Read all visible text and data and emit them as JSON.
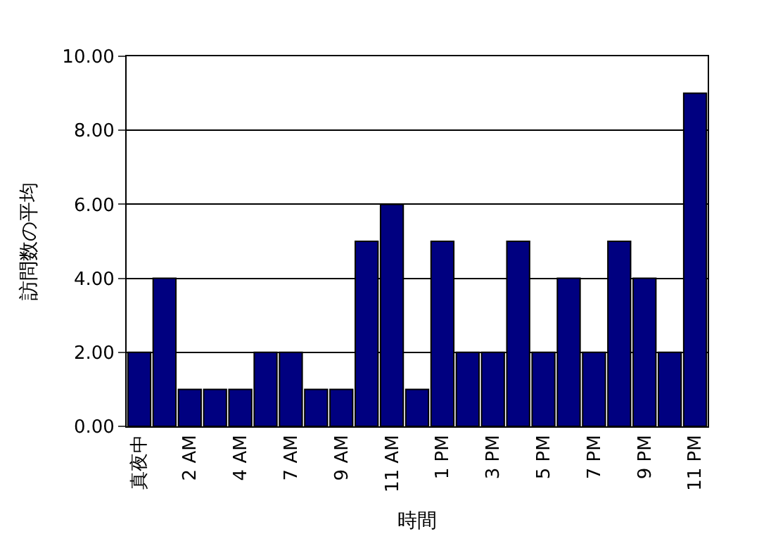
{
  "chart_data": {
    "type": "bar",
    "xlabel": "時間",
    "ylabel": "訪問数の平均",
    "categories": [
      "真夜中",
      null,
      "2 AM",
      null,
      "4 AM",
      null,
      "7 AM",
      null,
      "9 AM",
      null,
      "11 AM",
      null,
      "1 PM",
      null,
      "3 PM",
      null,
      "5 PM",
      null,
      "7 PM",
      null,
      "9 PM",
      null,
      "11 PM"
    ],
    "values": [
      2,
      4,
      1,
      1,
      1,
      2,
      2,
      1,
      1,
      5,
      6,
      1,
      5,
      2,
      2,
      5,
      2,
      4,
      2,
      5,
      4,
      2,
      9
    ],
    "color": "#000080",
    "ylim": [
      0,
      10
    ],
    "yticks": [
      {
        "value": 0,
        "label": "0.00"
      },
      {
        "value": 2,
        "label": "2.00"
      },
      {
        "value": 4,
        "label": "4.00"
      },
      {
        "value": 6,
        "label": "6.00"
      },
      {
        "value": 8,
        "label": "8.00"
      },
      {
        "value": 10,
        "label": "10.00"
      }
    ],
    "grid": "y"
  }
}
